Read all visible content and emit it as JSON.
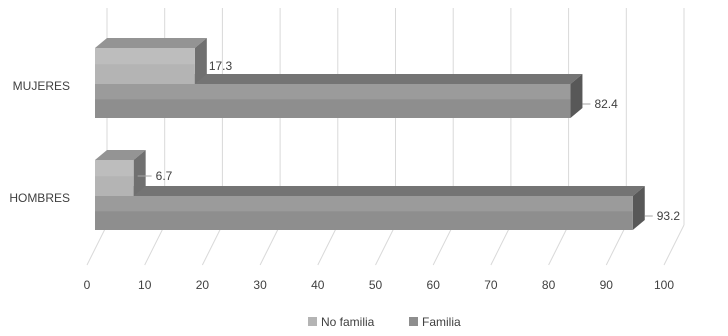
{
  "chart_data": {
    "type": "bar",
    "orientation": "horizontal",
    "three_d": true,
    "categories": [
      "MUJERES",
      "HOMBRES"
    ],
    "series": [
      {
        "name": "No familia",
        "values": [
          17.3,
          6.7
        ],
        "color": "#b4b4b4"
      },
      {
        "name": "Familia",
        "values": [
          82.4,
          93.2
        ],
        "color": "#8e8e8e"
      }
    ],
    "data_labels": [
      [
        "17.3",
        "6.7"
      ],
      [
        "82.4",
        "93.2"
      ]
    ],
    "xlim": [
      0,
      100
    ],
    "xticks": [
      0,
      10,
      20,
      30,
      40,
      50,
      60,
      70,
      80,
      90,
      100
    ],
    "grid": true,
    "legend_position": "bottom"
  }
}
